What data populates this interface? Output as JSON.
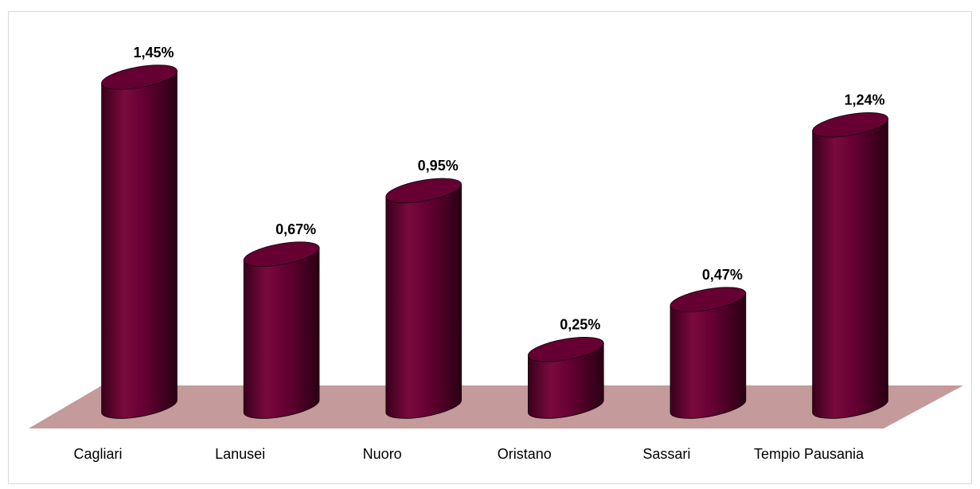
{
  "chart_data": {
    "type": "bar",
    "style": "3d-cylinder",
    "categories": [
      "Cagliari",
      "Lanusei",
      "Nuoro",
      "Oristano",
      "Sassari",
      "Tempio Pausania"
    ],
    "values": [
      1.45,
      0.67,
      0.95,
      0.25,
      0.47,
      1.24
    ],
    "value_labels": [
      "1,45%",
      "0,67%",
      "0,95%",
      "0,25%",
      "0,47%",
      "1,24%"
    ],
    "color": "#660033",
    "floor_color": "#c49a9a"
  }
}
